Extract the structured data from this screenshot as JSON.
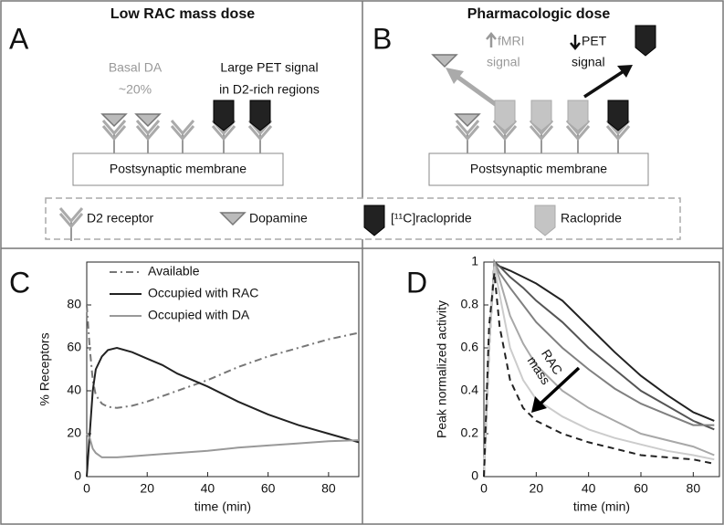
{
  "panels": [
    {
      "label": "A",
      "title": "Low RAC mass dose",
      "notes": [
        [
          "Basal DA",
          "~20%"
        ],
        [
          "Large PET signal",
          "in D2-rich regions"
        ]
      ],
      "membrane": "Postsynaptic membrane"
    },
    {
      "label": "B",
      "title": "Pharmacologic dose",
      "notes": [
        [
          "fMRI",
          "signal"
        ],
        [
          "PET",
          "signal"
        ]
      ],
      "membrane": "Postsynaptic membrane"
    }
  ],
  "legend": [
    "D2 receptor",
    "Dopamine",
    "[¹¹C]raclopride",
    "Raclopride"
  ],
  "chart_data": [
    {
      "type": "line",
      "panel_label": "C",
      "xlabel": "time (min)",
      "ylabel": "% Receptors",
      "xlim": [
        0,
        90
      ],
      "ylim": [
        0,
        100
      ],
      "xticks": [
        0,
        20,
        40,
        60,
        80
      ],
      "yticks": [
        0,
        20,
        40,
        60,
        80
      ],
      "legend": "upper center",
      "x": [
        0,
        1,
        2,
        3,
        5,
        7,
        10,
        15,
        20,
        25,
        30,
        40,
        50,
        60,
        70,
        80,
        90
      ],
      "series": [
        {
          "name": "Available",
          "color": "#777777",
          "style": "dashdot",
          "values": [
            80,
            60,
            45,
            38,
            34,
            32.5,
            32,
            33,
            35,
            37.5,
            40,
            45,
            51,
            56,
            60,
            64,
            67
          ]
        },
        {
          "name": "Occupied with RAC",
          "color": "#222222",
          "style": "solid",
          "values": [
            0,
            20,
            40,
            50,
            56,
            59,
            60,
            58,
            55,
            52,
            48,
            42,
            35,
            29,
            24,
            20,
            16
          ]
        },
        {
          "name": "Occupied with DA",
          "color": "#999999",
          "style": "solid",
          "values": [
            20,
            18,
            13,
            11,
            9,
            9,
            9,
            9.5,
            10,
            10.5,
            11,
            12,
            13.5,
            14.5,
            15.5,
            16.5,
            17
          ]
        }
      ]
    },
    {
      "type": "line",
      "panel_label": "D",
      "xlabel": "time (min)",
      "ylabel": "Peak normalized activity",
      "xlim": [
        0,
        90
      ],
      "ylim": [
        0,
        1
      ],
      "xticks": [
        0,
        20,
        40,
        60,
        80
      ],
      "yticks": [
        0,
        0.2,
        0.4,
        0.6,
        0.8,
        1
      ],
      "annotation": [
        "RAC",
        "mass"
      ],
      "x": [
        0,
        2,
        4,
        6,
        10,
        15,
        20,
        30,
        40,
        50,
        60,
        70,
        80,
        88
      ],
      "series": [
        {
          "color": "#222222",
          "style": "solid",
          "values": [
            0,
            0.6,
            1,
            0.98,
            0.96,
            0.93,
            0.9,
            0.82,
            0.7,
            0.58,
            0.47,
            0.38,
            0.3,
            0.26
          ]
        },
        {
          "color": "#555555",
          "style": "solid",
          "values": [
            0,
            0.6,
            1,
            0.98,
            0.93,
            0.88,
            0.82,
            0.72,
            0.6,
            0.5,
            0.4,
            0.33,
            0.26,
            0.22
          ]
        },
        {
          "color": "#808080",
          "style": "solid",
          "values": [
            0,
            0.6,
            1,
            0.95,
            0.88,
            0.8,
            0.72,
            0.6,
            0.5,
            0.41,
            0.34,
            0.29,
            0.24,
            0.24
          ]
        },
        {
          "color": "#a8a8a8",
          "style": "solid",
          "values": [
            0,
            0.6,
            1,
            0.92,
            0.75,
            0.62,
            0.52,
            0.4,
            0.32,
            0.26,
            0.2,
            0.17,
            0.14,
            0.1
          ]
        },
        {
          "color": "#cccccc",
          "style": "solid",
          "values": [
            0,
            0.6,
            0.98,
            0.85,
            0.6,
            0.45,
            0.36,
            0.28,
            0.22,
            0.18,
            0.15,
            0.12,
            0.1,
            0.08
          ]
        },
        {
          "color": "#222222",
          "style": "dashed",
          "values": [
            0,
            0.7,
            0.95,
            0.7,
            0.45,
            0.32,
            0.26,
            0.2,
            0.16,
            0.13,
            0.1,
            0.09,
            0.08,
            0.06
          ]
        }
      ]
    }
  ]
}
